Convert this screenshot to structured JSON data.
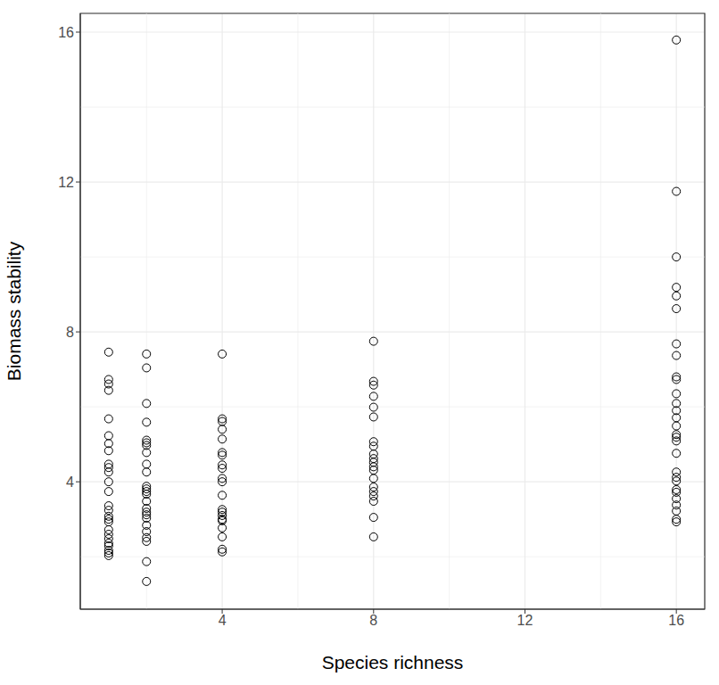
{
  "chart_data": {
    "type": "scatter",
    "x_label": "Species richness",
    "y_label": "Biomass stability",
    "xlim": [
      0.25,
      16.75
    ],
    "ylim": [
      0.6,
      16.5
    ],
    "xticks": [
      4,
      8,
      12,
      16
    ],
    "yticks": [
      4,
      8,
      12,
      16
    ],
    "grid": true,
    "marker": "open_circle",
    "color": "#000000",
    "x": [
      1,
      1,
      1,
      1,
      1,
      1,
      1,
      1,
      1,
      1,
      1,
      1,
      1,
      1,
      1,
      1,
      1,
      1,
      1,
      1,
      1,
      1,
      1,
      1,
      1,
      1,
      2,
      2,
      2,
      2,
      2,
      2,
      2,
      2,
      2,
      2,
      2,
      2,
      2,
      2,
      2,
      2,
      2,
      2,
      2,
      2,
      2,
      2,
      2,
      2,
      2,
      4,
      4,
      4,
      4,
      4,
      4,
      4,
      4,
      4,
      4,
      4,
      4,
      4,
      4,
      4,
      4,
      4,
      4,
      4,
      4,
      4,
      8,
      8,
      8,
      8,
      8,
      8,
      8,
      8,
      8,
      8,
      8,
      8,
      8,
      8,
      8,
      8,
      8,
      8,
      8,
      8,
      16,
      16,
      16,
      16,
      16,
      16,
      16,
      16,
      16,
      16,
      16,
      16,
      16,
      16,
      16,
      16,
      16,
      16,
      16,
      16,
      16,
      16,
      16,
      16,
      16,
      16,
      16,
      16,
      16
    ],
    "values": [
      7.46,
      6.73,
      6.61,
      6.44,
      5.68,
      5.23,
      5.02,
      4.83,
      4.47,
      4.38,
      4.26,
      4.0,
      3.74,
      3.36,
      3.24,
      3.08,
      3.0,
      2.93,
      2.72,
      2.6,
      2.48,
      2.36,
      2.29,
      2.17,
      2.1,
      2.03,
      7.41,
      7.04,
      6.09,
      5.59,
      5.11,
      5.04,
      4.97,
      4.78,
      4.47,
      4.26,
      3.88,
      3.81,
      3.74,
      3.67,
      3.48,
      3.29,
      3.19,
      3.12,
      3.03,
      2.84,
      2.67,
      2.51,
      2.41,
      1.87,
      1.34,
      7.41,
      5.68,
      5.61,
      5.4,
      5.14,
      4.78,
      4.71,
      4.45,
      4.36,
      4.09,
      4.0,
      3.64,
      3.26,
      3.19,
      3.1,
      3.0,
      2.96,
      2.77,
      2.53,
      2.2,
      2.13,
      7.75,
      6.68,
      6.58,
      6.28,
      5.99,
      5.73,
      5.07,
      4.95,
      4.74,
      4.62,
      4.52,
      4.4,
      4.31,
      4.09,
      3.86,
      3.74,
      3.62,
      3.48,
      3.05,
      2.53,
      15.79,
      11.75,
      10.0,
      9.19,
      8.96,
      8.62,
      7.68,
      7.37,
      6.8,
      6.73,
      6.35,
      6.09,
      5.9,
      5.71,
      5.49,
      5.26,
      5.19,
      5.09,
      4.76,
      4.26,
      4.12,
      4.02,
      3.79,
      3.72,
      3.55,
      3.38,
      3.22,
      3.0,
      2.93
    ]
  }
}
